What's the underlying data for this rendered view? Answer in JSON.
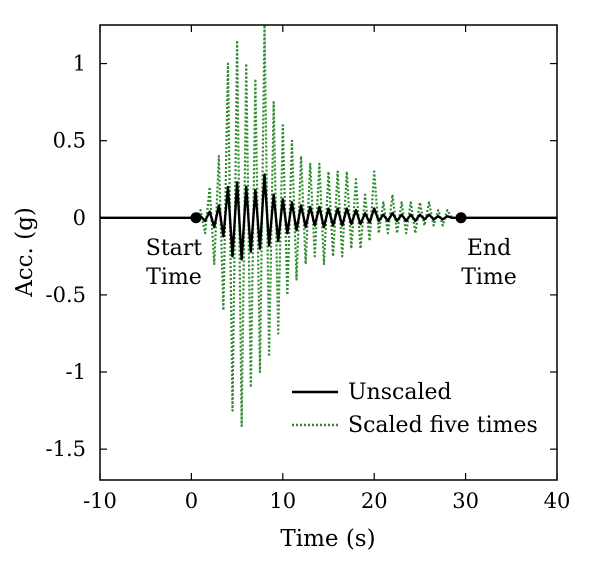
{
  "chart_data": {
    "type": "line",
    "xlabel": "Time (s)",
    "ylabel": "Acc. (g)",
    "xlim": [
      -10,
      40
    ],
    "ylim": [
      -1.7,
      1.25
    ],
    "x_ticks": [
      -10,
      0,
      10,
      20,
      30,
      40
    ],
    "x_tick_labels": [
      "-10",
      "0",
      "10",
      "20",
      "30",
      "40"
    ],
    "y_ticks": [
      -1.5,
      -1,
      -0.5,
      0,
      0.5,
      1
    ],
    "y_tick_labels": [
      "-1.5",
      "-1",
      "-0.5",
      "0",
      "0.5",
      "1"
    ],
    "grid": false,
    "legend_position": "bottom-right",
    "series": [
      {
        "name": "Unscaled",
        "style": "solid",
        "color": "#000000",
        "x": [
          -10,
          0.5,
          1,
          1.5,
          2,
          2.5,
          3,
          3.5,
          4,
          4.5,
          5,
          5.5,
          6,
          6.5,
          7,
          7.5,
          8,
          8.5,
          9,
          9.5,
          10,
          10.5,
          11,
          11.5,
          12,
          12.5,
          13,
          13.5,
          14,
          14.5,
          15,
          15.5,
          16,
          16.5,
          17,
          17.5,
          18,
          18.5,
          19,
          19.5,
          20,
          20.5,
          21,
          21.5,
          22,
          22.5,
          23,
          23.5,
          24,
          24.5,
          25,
          25.5,
          26,
          26.5,
          27,
          27.5,
          28,
          28.5,
          29.5,
          40
        ],
        "y": [
          0,
          0,
          0.01,
          -0.02,
          0.04,
          -0.06,
          0.08,
          -0.12,
          0.2,
          -0.25,
          0.23,
          -0.27,
          0.2,
          -0.22,
          0.18,
          -0.2,
          0.28,
          -0.18,
          0.15,
          -0.15,
          0.12,
          -0.1,
          0.1,
          -0.08,
          0.08,
          -0.06,
          0.07,
          -0.05,
          0.07,
          -0.06,
          0.06,
          -0.05,
          0.06,
          -0.05,
          0.06,
          -0.04,
          0.05,
          -0.04,
          0.03,
          -0.03,
          0.06,
          -0.02,
          0.02,
          -0.02,
          0.03,
          -0.02,
          0.02,
          -0.02,
          0.02,
          -0.02,
          0.02,
          -0.01,
          0.02,
          -0.01,
          0.01,
          -0.01,
          0.01,
          0,
          0,
          0
        ]
      },
      {
        "name": "Scaled five times",
        "style": "dotted",
        "color": "#2e8b2e",
        "x": [
          -10,
          0.5,
          1,
          1.5,
          2,
          2.5,
          3,
          3.5,
          4,
          4.5,
          5,
          5.5,
          6,
          6.5,
          7,
          7.5,
          8,
          8.5,
          9,
          9.5,
          10,
          10.5,
          11,
          11.5,
          12,
          12.5,
          13,
          13.5,
          14,
          14.5,
          15,
          15.5,
          16,
          16.5,
          17,
          17.5,
          18,
          18.5,
          19,
          19.5,
          20,
          20.5,
          21,
          21.5,
          22,
          22.5,
          23,
          23.5,
          24,
          24.5,
          25,
          25.5,
          26,
          26.5,
          27,
          27.5,
          28,
          28.5,
          29.5,
          40
        ],
        "y": [
          0,
          0,
          0.05,
          -0.1,
          0.2,
          -0.3,
          0.4,
          -0.6,
          1.0,
          -1.25,
          1.15,
          -1.35,
          1.0,
          -1.1,
          0.9,
          -1.0,
          1.25,
          -0.9,
          0.75,
          -0.75,
          0.6,
          -0.5,
          0.5,
          -0.4,
          0.4,
          -0.3,
          0.35,
          -0.25,
          0.35,
          -0.3,
          0.3,
          -0.25,
          0.3,
          -0.25,
          0.3,
          -0.2,
          0.25,
          -0.2,
          0.15,
          -0.15,
          0.3,
          -0.1,
          0.1,
          -0.1,
          0.15,
          -0.1,
          0.1,
          -0.1,
          0.1,
          -0.1,
          0.1,
          -0.05,
          0.1,
          -0.05,
          0.05,
          -0.05,
          0.05,
          0,
          0,
          0
        ]
      }
    ],
    "markers": [
      {
        "x": 0.5,
        "y": 0
      },
      {
        "x": 29.5,
        "y": 0
      }
    ],
    "annotations": [
      {
        "id": "start",
        "lines": [
          "Start",
          "Time"
        ],
        "x": 0.5,
        "y": 0
      },
      {
        "id": "end",
        "lines": [
          "End",
          "Time"
        ],
        "x": 29.5,
        "y": 0
      }
    ]
  }
}
